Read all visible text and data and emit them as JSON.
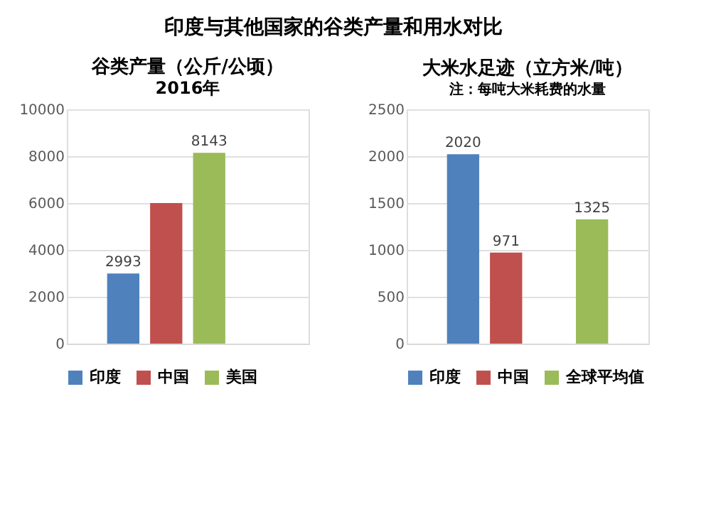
{
  "chart_data": [
    {
      "type": "bar",
      "title": "谷类产量（公斤/公顷）",
      "subtitle": "2016年",
      "annotations": [
        "印度与其他国家的谷类产量和用水对比"
      ],
      "categories": [
        null
      ],
      "series": [
        {
          "name": "印度",
          "color": "#4f81bd",
          "values": [
            2993
          ],
          "value_labels": [
            "2993"
          ]
        },
        {
          "name": "中国",
          "color": "#c0504d",
          "values": [
            6000
          ],
          "value_labels": [
            null
          ]
        },
        {
          "name": "美国",
          "color": "#9bbb59",
          "values": [
            8143
          ],
          "value_labels": [
            "8143"
          ]
        }
      ],
      "ylim": [
        0,
        10000
      ],
      "yticks": [
        0,
        2000,
        4000,
        6000,
        8000,
        10000
      ],
      "grid": "y",
      "legend": "bottom",
      "tick_labels": "y"
    },
    {
      "type": "bar",
      "title": "大米水足迹（立方米/吨）",
      "subtitle": "注：每吨大米耗费的水量",
      "categories": [
        null
      ],
      "series": [
        {
          "name": "印度",
          "color": "#4f81bd",
          "values": [
            2020
          ]
        },
        {
          "name": "中国",
          "color": "#c0504d",
          "values": [
            971
          ]
        },
        {
          "name": "全球平均值",
          "color": "#9bbb59",
          "values": [
            1325
          ]
        }
      ],
      "data_labels": true,
      "ylim": [
        0,
        2500
      ],
      "yticks": [
        0,
        500,
        1000,
        1500,
        2000,
        2500
      ],
      "grid": "y",
      "legend": "bottom",
      "tick_labels": "y"
    }
  ]
}
